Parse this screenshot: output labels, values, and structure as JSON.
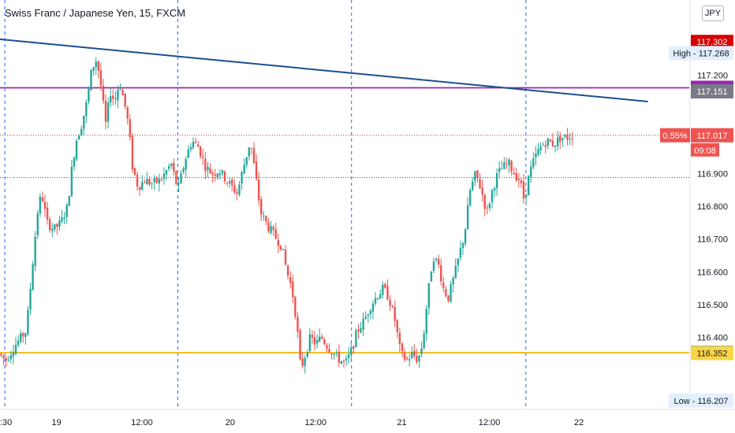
{
  "header": {
    "title": "Swiss Franc / Japanese Yen, 15, FXCM",
    "currency": "JPY"
  },
  "chart_data": {
    "type": "candlestick",
    "symbol": "CHFJPY",
    "timeframe": "15",
    "source": "FXCM",
    "ylim": [
      116.18,
      117.43
    ],
    "y_ticks": [
      "117.200",
      "116.900",
      "116.800",
      "116.700",
      "116.600",
      "116.500",
      "116.400"
    ],
    "x_ticks": [
      {
        "label": ":30",
        "t": 0
      },
      {
        "label": "19",
        "t": 0.082
      },
      {
        "label": "12:00",
        "t": 0.206
      },
      {
        "label": "20",
        "t": 0.334
      },
      {
        "label": "12:00",
        "t": 0.458
      },
      {
        "label": "21",
        "t": 0.583
      },
      {
        "label": "12:00",
        "t": 0.71
      },
      {
        "label": "22",
        "t": 0.84
      }
    ],
    "session_breaks_t": [
      0.007,
      0.258,
      0.51,
      0.763
    ],
    "price_labels": [
      {
        "value": 117.302,
        "text": "117.302",
        "color": "#d50000"
      },
      {
        "value": 117.268,
        "text": "High - 117.268",
        "color": "#e3effd"
      },
      {
        "value": 117.162,
        "text": "117.162",
        "color": "#9c27b0"
      },
      {
        "value": 117.151,
        "text": "117.151",
        "color": "#787b86"
      },
      {
        "value": 117.017,
        "text": "117.017",
        "color": "#ef5350"
      },
      {
        "value": 116.353,
        "text": "116.353",
        "color": "#1e88e5"
      },
      {
        "value": 116.352,
        "text": "116.352",
        "color": "#f9d648"
      },
      {
        "value": 116.207,
        "text": "Low - 116.207",
        "color": "#e3effd"
      }
    ],
    "change_badge": "0.55%",
    "countdown": "09:08",
    "horizontal_lines": [
      {
        "value": 117.162,
        "color": "#9c27b0",
        "style": "solid"
      },
      {
        "value": 116.353,
        "color": "#f5b50a",
        "style": "solid"
      },
      {
        "value": 117.017,
        "color": "#c0392b",
        "style": "dotted"
      },
      {
        "value": 116.888,
        "color": "#555555",
        "style": "dotted"
      }
    ],
    "trendline": {
      "color": "#1a4f8f",
      "points": [
        {
          "t": 0,
          "v": 117.31
        },
        {
          "t": 0.94,
          "v": 117.12
        }
      ]
    },
    "path": [
      [
        0.0,
        116.35
      ],
      [
        0.01,
        116.33
      ],
      [
        0.025,
        116.38
      ],
      [
        0.04,
        116.42
      ],
      [
        0.048,
        116.6
      ],
      [
        0.056,
        116.78
      ],
      [
        0.062,
        116.84
      ],
      [
        0.07,
        116.75
      ],
      [
        0.08,
        116.73
      ],
      [
        0.09,
        116.75
      ],
      [
        0.1,
        116.8
      ],
      [
        0.105,
        116.9
      ],
      [
        0.112,
        117.0
      ],
      [
        0.12,
        117.05
      ],
      [
        0.128,
        117.12
      ],
      [
        0.135,
        117.22
      ],
      [
        0.142,
        117.25
      ],
      [
        0.148,
        117.17
      ],
      [
        0.155,
        117.05
      ],
      [
        0.162,
        117.15
      ],
      [
        0.168,
        117.12
      ],
      [
        0.175,
        117.18
      ],
      [
        0.182,
        117.12
      ],
      [
        0.188,
        117.05
      ],
      [
        0.194,
        116.92
      ],
      [
        0.202,
        116.86
      ],
      [
        0.212,
        116.88
      ],
      [
        0.222,
        116.87
      ],
      [
        0.235,
        116.88
      ],
      [
        0.25,
        116.93
      ],
      [
        0.26,
        116.85
      ],
      [
        0.27,
        116.94
      ],
      [
        0.28,
        117.0
      ],
      [
        0.29,
        116.98
      ],
      [
        0.3,
        116.92
      ],
      [
        0.31,
        116.9
      ],
      [
        0.32,
        116.91
      ],
      [
        0.33,
        116.88
      ],
      [
        0.338,
        116.86
      ],
      [
        0.346,
        116.84
      ],
      [
        0.355,
        116.92
      ],
      [
        0.365,
        117.0
      ],
      [
        0.372,
        116.9
      ],
      [
        0.38,
        116.78
      ],
      [
        0.39,
        116.74
      ],
      [
        0.4,
        116.71
      ],
      [
        0.41,
        116.68
      ],
      [
        0.418,
        116.6
      ],
      [
        0.425,
        116.55
      ],
      [
        0.432,
        116.45
      ],
      [
        0.438,
        116.3
      ],
      [
        0.445,
        116.35
      ],
      [
        0.452,
        116.4
      ],
      [
        0.46,
        116.38
      ],
      [
        0.468,
        116.4
      ],
      [
        0.478,
        116.37
      ],
      [
        0.486,
        116.35
      ],
      [
        0.495,
        116.33
      ],
      [
        0.503,
        116.32
      ],
      [
        0.512,
        116.36
      ],
      [
        0.52,
        116.42
      ],
      [
        0.53,
        116.45
      ],
      [
        0.54,
        116.5
      ],
      [
        0.55,
        116.53
      ],
      [
        0.558,
        116.55
      ],
      [
        0.566,
        116.52
      ],
      [
        0.575,
        116.45
      ],
      [
        0.583,
        116.35
      ],
      [
        0.592,
        116.33
      ],
      [
        0.6,
        116.35
      ],
      [
        0.608,
        116.33
      ],
      [
        0.615,
        116.38
      ],
      [
        0.622,
        116.52
      ],
      [
        0.63,
        116.65
      ],
      [
        0.638,
        116.62
      ],
      [
        0.645,
        116.55
      ],
      [
        0.652,
        116.52
      ],
      [
        0.66,
        116.58
      ],
      [
        0.668,
        116.65
      ],
      [
        0.676,
        116.72
      ],
      [
        0.684,
        116.85
      ],
      [
        0.692,
        116.9
      ],
      [
        0.7,
        116.85
      ],
      [
        0.708,
        116.78
      ],
      [
        0.716,
        116.85
      ],
      [
        0.724,
        116.9
      ],
      [
        0.732,
        116.92
      ],
      [
        0.74,
        116.93
      ],
      [
        0.748,
        116.9
      ],
      [
        0.756,
        116.88
      ],
      [
        0.762,
        116.82
      ],
      [
        0.77,
        116.9
      ],
      [
        0.778,
        116.95
      ],
      [
        0.786,
        116.98
      ],
      [
        0.795,
        117.0
      ],
      [
        0.805,
        116.99
      ],
      [
        0.815,
        117.01
      ],
      [
        0.825,
        117.01
      ],
      [
        0.832,
        117.017
      ]
    ],
    "n_candles": 236
  }
}
